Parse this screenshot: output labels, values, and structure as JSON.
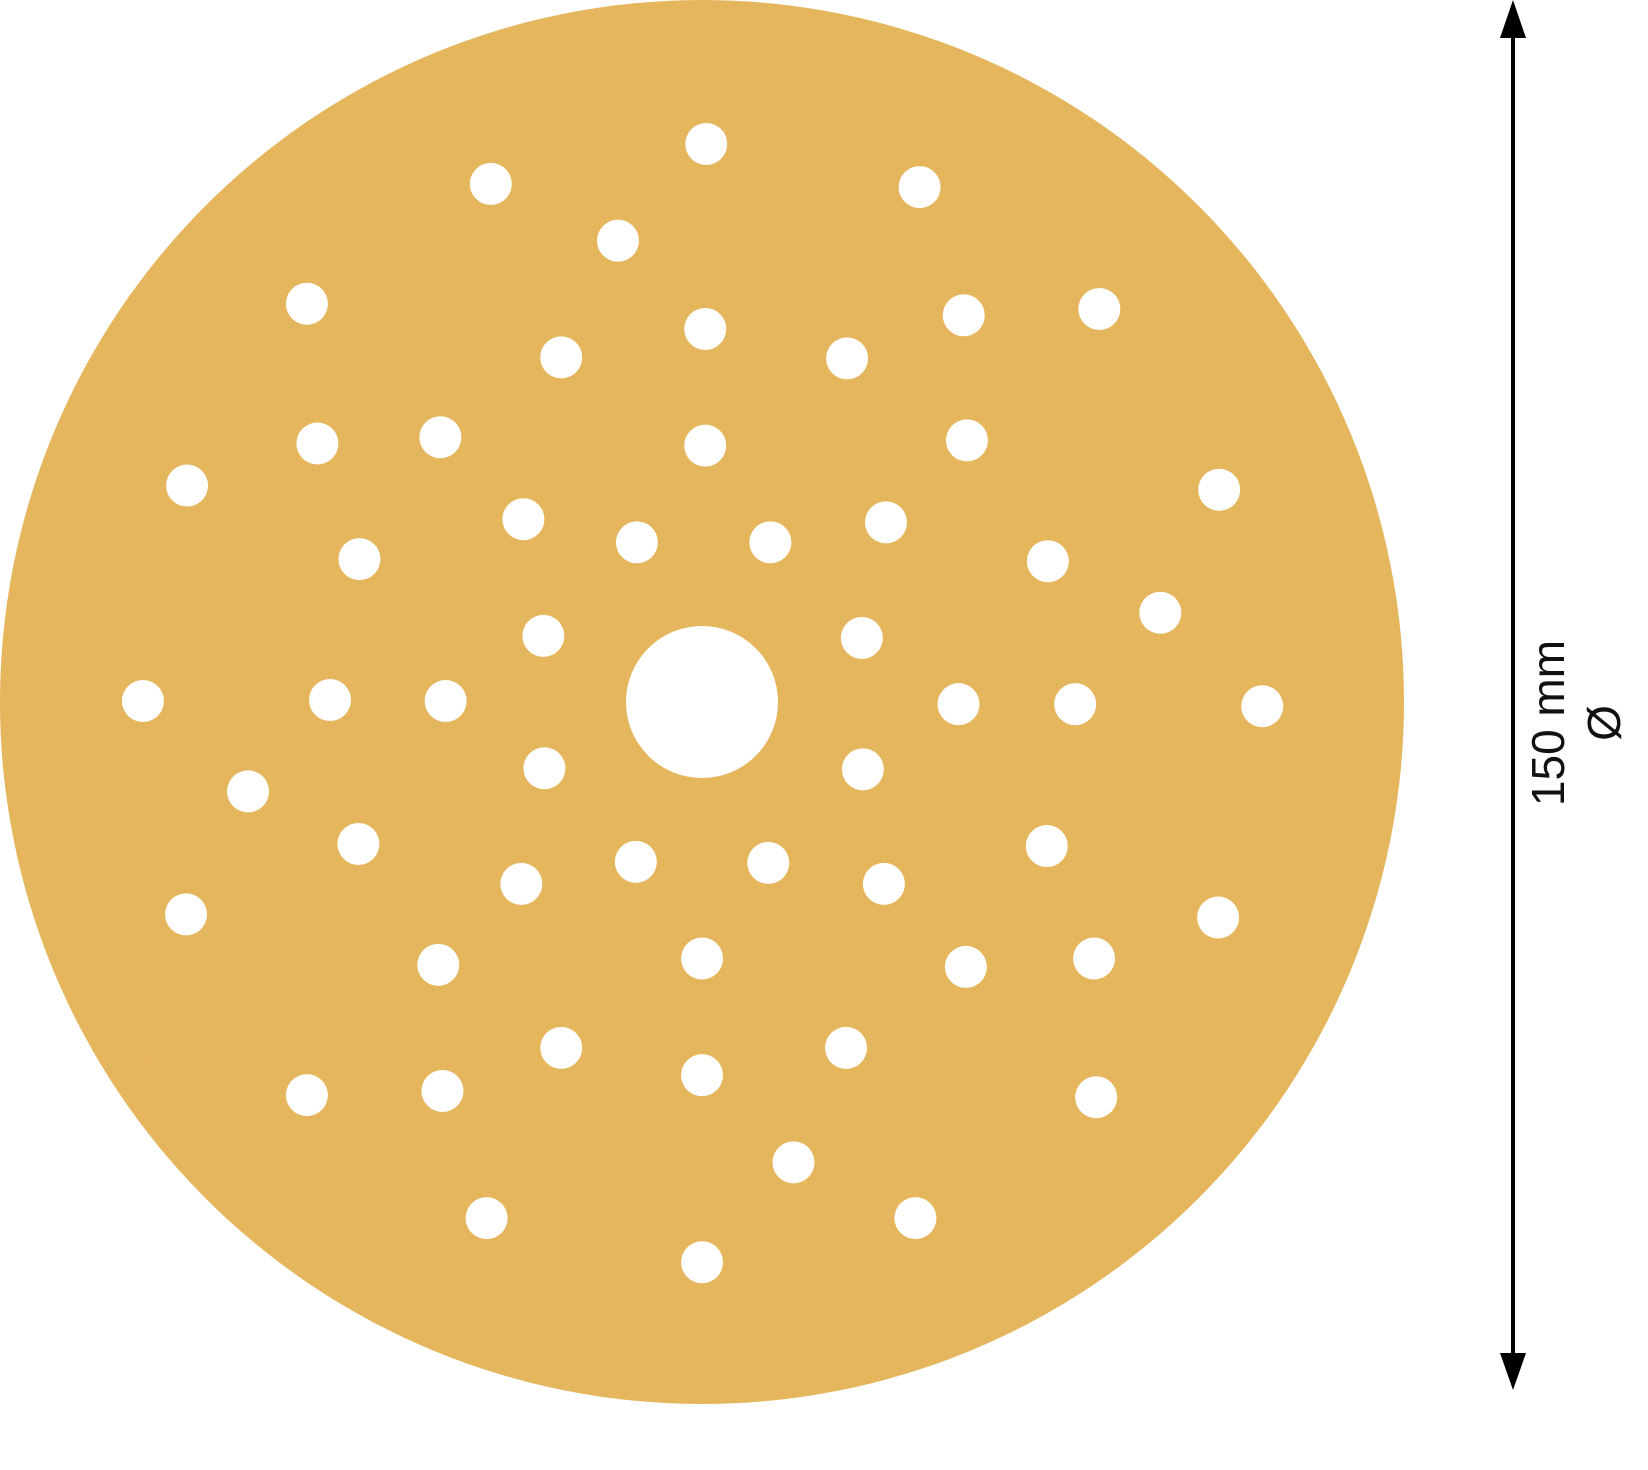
{
  "dimension": {
    "value_label": "150 mm",
    "symbol": "Ø"
  },
  "colors": {
    "disc": "#e9b75a",
    "grain": "#a8823a",
    "background": "#ffffff",
    "arrow": "#000000"
  }
}
